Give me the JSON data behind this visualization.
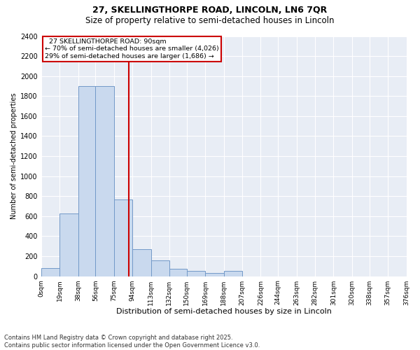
{
  "title_line1": "27, SKELLINGTHORPE ROAD, LINCOLN, LN6 7QR",
  "title_line2": "Size of property relative to semi-detached houses in Lincoln",
  "xlabel": "Distribution of semi-detached houses by size in Lincoln",
  "ylabel": "Number of semi-detached properties",
  "footnote": "Contains HM Land Registry data © Crown copyright and database right 2025.\nContains public sector information licensed under the Open Government Licence v3.0.",
  "annotation_line1": "27 SKELLINGTHORPE ROAD: 90sqm",
  "annotation_line2": "← 70% of semi-detached houses are smaller (4,026)",
  "annotation_line3": "29% of semi-detached houses are larger (1,686) →",
  "bin_edges": [
    0,
    19,
    38,
    56,
    75,
    94,
    113,
    132,
    150,
    169,
    188,
    207,
    226,
    244,
    263,
    282,
    301,
    320,
    338,
    357,
    376
  ],
  "bar_heights": [
    80,
    630,
    1900,
    1900,
    770,
    270,
    160,
    75,
    55,
    35,
    50,
    0,
    0,
    0,
    0,
    0,
    0,
    0,
    0,
    0
  ],
  "bar_color": "#c9d9ee",
  "bar_edge_color": "#7299c8",
  "vline_color": "#cc0000",
  "vline_x": 90,
  "ylim": [
    0,
    2400
  ],
  "yticks": [
    0,
    200,
    400,
    600,
    800,
    1000,
    1200,
    1400,
    1600,
    1800,
    2000,
    2200,
    2400
  ],
  "bg_color": "#e8edf5",
  "grid_color": "#ffffff",
  "annotation_box_color": "#cc0000",
  "title_fontsize": 9,
  "subtitle_fontsize": 8.5
}
